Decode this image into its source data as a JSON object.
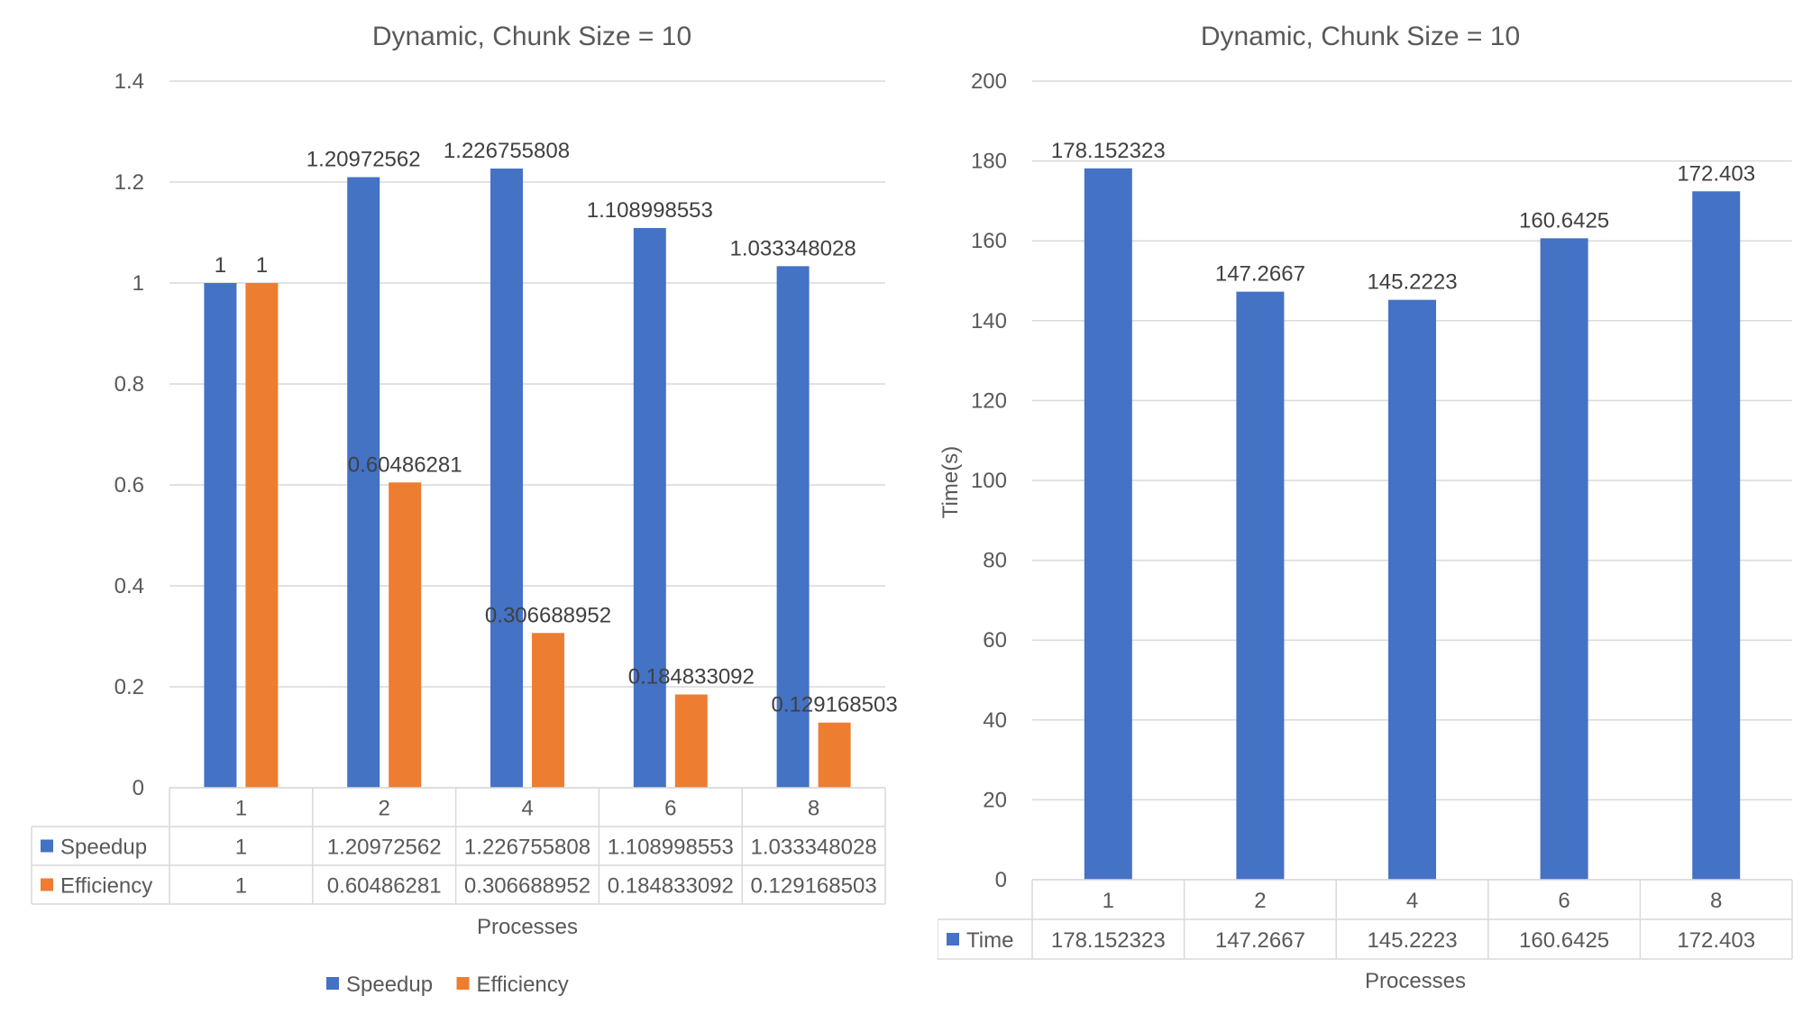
{
  "chart_data": [
    {
      "type": "bar",
      "title": "Dynamic, Chunk Size = 10",
      "xlabel": "Processes",
      "ylabel": "",
      "ylim": [
        0,
        1.4
      ],
      "yticks": [
        "0",
        "0.2",
        "0.4",
        "0.6",
        "0.8",
        "1",
        "1.2",
        "1.4"
      ],
      "categories": [
        "1",
        "2",
        "4",
        "6",
        "8"
      ],
      "series": [
        {
          "name": "Speedup",
          "color": "#4472C4",
          "values": [
            1,
            1.20972562,
            1.226755808,
            1.108998553,
            1.033348028
          ],
          "labels": [
            "1",
            "1.20972562",
            "1.226755808",
            "1.108998553",
            "1.033348028"
          ]
        },
        {
          "name": "Efficiency",
          "color": "#ED7D31",
          "values": [
            1,
            0.60486281,
            0.306688952,
            0.184833092,
            0.129168503
          ],
          "labels": [
            "1",
            "0.60486281",
            "0.306688952",
            "0.184833092",
            "0.129168503"
          ]
        }
      ],
      "grid": true,
      "legend": "bottom",
      "data_table": true
    },
    {
      "type": "bar",
      "title": "Dynamic, Chunk Size = 10",
      "xlabel": "Processes",
      "ylabel": "Time(s)",
      "ylim": [
        0,
        200
      ],
      "yticks": [
        "0",
        "20",
        "40",
        "60",
        "80",
        "100",
        "120",
        "140",
        "160",
        "180",
        "200"
      ],
      "categories": [
        "1",
        "2",
        "4",
        "6",
        "8"
      ],
      "series": [
        {
          "name": "Time",
          "color": "#4472C4",
          "values": [
            178.152323,
            147.2667,
            145.2223,
            160.6425,
            172.403
          ],
          "labels": [
            "178.152323",
            "147.2667",
            "145.2223",
            "160.6425",
            "172.403"
          ]
        }
      ],
      "grid": true,
      "legend": "none",
      "data_table": true
    }
  ]
}
